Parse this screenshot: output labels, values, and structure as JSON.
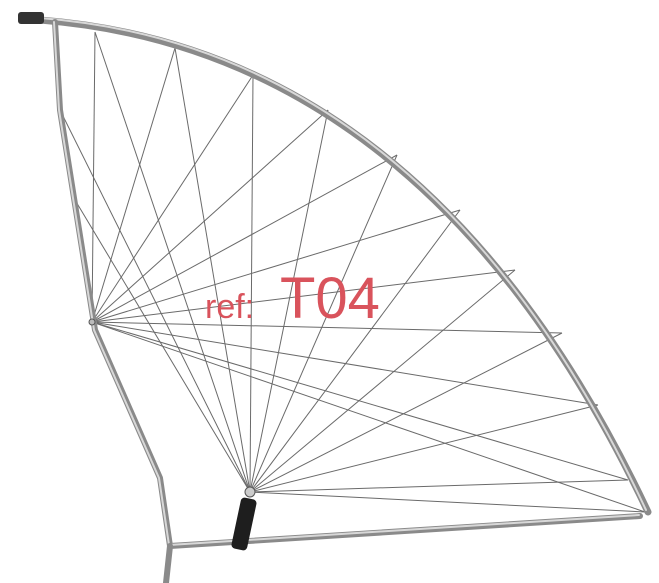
{
  "watermark": {
    "prefix": "ref:",
    "code": "T04"
  }
}
